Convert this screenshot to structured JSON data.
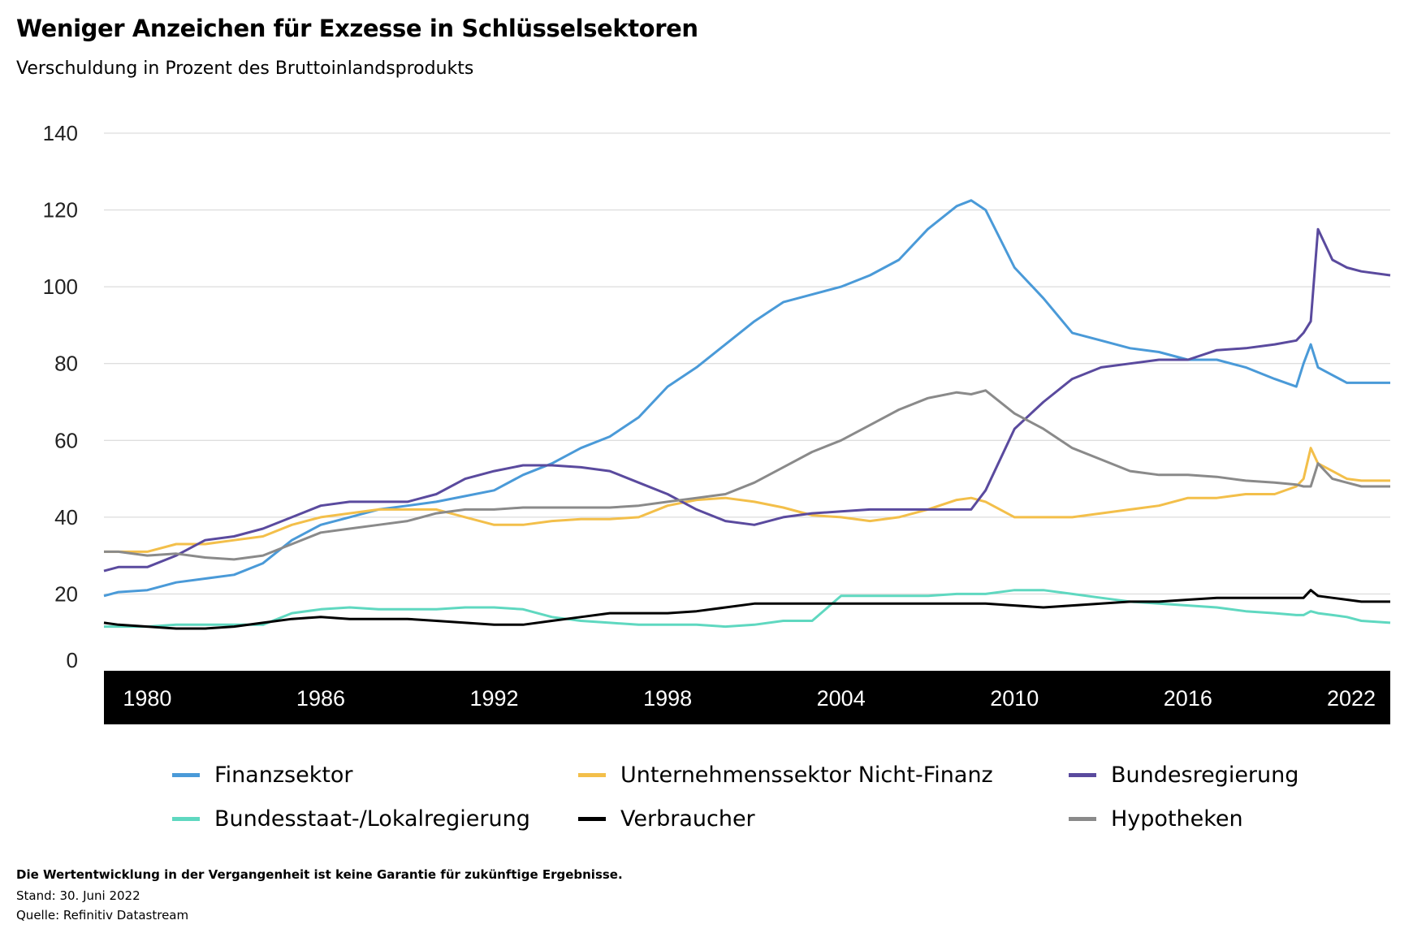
{
  "title": "Weniger Anzeichen für Exzesse in Schlüsselsektoren",
  "subtitle": "Verschuldung in Prozent des Bruttoinlandsprodukts",
  "footer": {
    "note": "Die Wertentwicklung in der Vergangenheit ist keine Garantie für zukünftige Ergebnisse.",
    "stand": "Stand: 30. Juni 2022",
    "source": "Quelle: Refinitiv Datastream"
  },
  "chart_data": {
    "type": "line",
    "title": "Weniger Anzeichen für Exzesse in Schlüsselsektoren",
    "subtitle": "Verschuldung in Prozent des Bruttoinlandsprodukts",
    "xlabel": "",
    "ylabel": "",
    "ylim": [
      0,
      140
    ],
    "xlim": [
      1978.5,
      2023.0
    ],
    "yticks": [
      0,
      20,
      40,
      60,
      80,
      100,
      120,
      140
    ],
    "xticks": [
      "1980",
      "1986",
      "1992",
      "1998",
      "2004",
      "2010",
      "2016",
      "2022"
    ],
    "grid": "horizontal",
    "legend_position": "bottom",
    "x": [
      1978.5,
      1979,
      1980,
      1981,
      1982,
      1983,
      1984,
      1985,
      1986,
      1987,
      1988,
      1989,
      1990,
      1991,
      1992,
      1993,
      1994,
      1995,
      1996,
      1997,
      1998,
      1999,
      2000,
      2001,
      2002,
      2003,
      2004,
      2005,
      2006,
      2007,
      2008,
      2008.5,
      2009,
      2010,
      2011,
      2012,
      2013,
      2014,
      2015,
      2016,
      2017,
      2018,
      2019,
      2019.75,
      2020,
      2020.25,
      2020.5,
      2021,
      2021.5,
      2022,
      2023
    ],
    "series": [
      {
        "name": "Finanzsektor",
        "color": "#4a9ad8",
        "values": [
          19.5,
          20.5,
          21,
          23,
          24,
          25,
          28,
          34,
          38,
          40,
          42,
          43,
          44,
          45.5,
          47,
          51,
          54,
          58,
          61,
          66,
          74,
          79,
          85,
          91,
          96,
          98,
          100,
          103,
          107,
          115,
          121,
          122.5,
          120,
          105,
          97,
          88,
          86,
          84,
          83,
          81,
          81,
          79,
          76,
          74,
          80,
          85,
          79,
          77,
          75,
          75,
          75
        ]
      },
      {
        "name": "Unternehmenssektor Nicht-Finanz",
        "color": "#f3bf4a",
        "values": [
          31,
          31,
          31,
          33,
          33,
          34,
          35,
          38,
          40,
          41,
          42,
          42,
          42,
          40,
          38,
          38,
          39,
          39.5,
          39.5,
          40,
          43,
          44.5,
          45,
          44,
          42.5,
          40.5,
          40,
          39,
          40,
          42,
          44.5,
          45,
          44,
          40,
          40,
          40,
          41,
          42,
          43,
          45,
          45,
          46,
          46,
          48,
          50,
          58,
          54,
          52,
          50,
          49.5,
          49.5
        ]
      },
      {
        "name": "Bundesregierung",
        "color": "#5a4a9e",
        "values": [
          26,
          27,
          27,
          30,
          34,
          35,
          37,
          40,
          43,
          44,
          44,
          44,
          46,
          50,
          52,
          53.5,
          53.5,
          53,
          52,
          49,
          46,
          42,
          39,
          38,
          40,
          41,
          41.5,
          42,
          42,
          42,
          42,
          42,
          47,
          63,
          70,
          76,
          79,
          80,
          81,
          81,
          83.5,
          84,
          85,
          86,
          88,
          91,
          115,
          107,
          105,
          104,
          103
        ]
      },
      {
        "name": "Bundesstaat-/Lokalregierung",
        "color": "#5fd8c0",
        "values": [
          11.5,
          11.5,
          11.5,
          12,
          12,
          12,
          12,
          15,
          16,
          16.5,
          16,
          16,
          16,
          16.5,
          16.5,
          16,
          14,
          13,
          12.5,
          12,
          12,
          12,
          11.5,
          12,
          13,
          13,
          19.5,
          19.5,
          19.5,
          19.5,
          20,
          20,
          20,
          21,
          21,
          20,
          19,
          18,
          17.5,
          17,
          16.5,
          15.5,
          15,
          14.5,
          14.5,
          15.5,
          15,
          14.5,
          14,
          13,
          12.5
        ]
      },
      {
        "name": "Verbraucher",
        "color": "#000000",
        "values": [
          12.5,
          12,
          11.5,
          11,
          11,
          11.5,
          12.5,
          13.5,
          14,
          13.5,
          13.5,
          13.5,
          13,
          12.5,
          12,
          12,
          13,
          14,
          15,
          15,
          15,
          15.5,
          16.5,
          17.5,
          17.5,
          17.5,
          17.5,
          17.5,
          17.5,
          17.5,
          17.5,
          17.5,
          17.5,
          17,
          16.5,
          17,
          17.5,
          18,
          18,
          18.5,
          19,
          19,
          19,
          19,
          19,
          21,
          19.5,
          19,
          18.5,
          18,
          18
        ]
      },
      {
        "name": "Hypotheken",
        "color": "#8a8a8a",
        "values": [
          31,
          31,
          30,
          30.5,
          29.5,
          29,
          30,
          33,
          36,
          37,
          38,
          39,
          41,
          42,
          42,
          42.5,
          42.5,
          42.5,
          42.5,
          43,
          44,
          45,
          46,
          49,
          53,
          57,
          60,
          64,
          68,
          71,
          72.5,
          72,
          73,
          67,
          63,
          58,
          55,
          52,
          51,
          51,
          50.5,
          49.5,
          49,
          48.5,
          48,
          48,
          54,
          50,
          49,
          48,
          48
        ]
      }
    ]
  }
}
